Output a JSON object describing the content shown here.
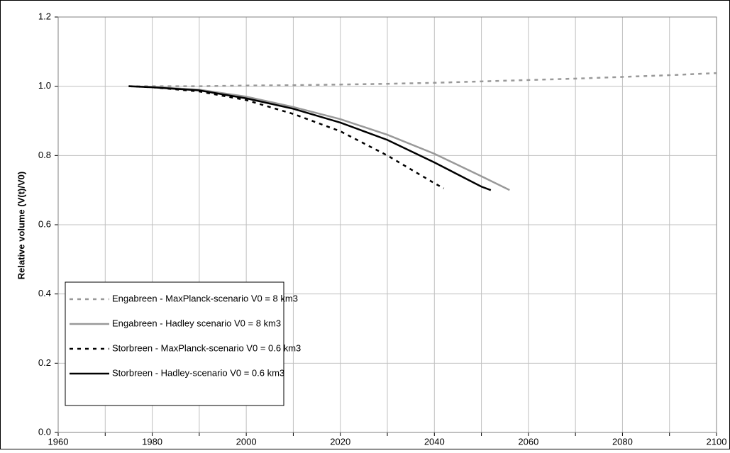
{
  "chart_data": {
    "type": "line",
    "y_label": "Relative volume (V(t)/V0)",
    "xlim": [
      1960,
      2100
    ],
    "xticks": [
      1960,
      1980,
      2000,
      2020,
      2040,
      2060,
      2080,
      2100
    ],
    "xminor_ticks": [
      1970,
      1990,
      2010,
      2030,
      2050,
      2070,
      2090
    ],
    "ylim": [
      0,
      1.2
    ],
    "yticks": [
      {
        "value": 0,
        "label": "0.0"
      },
      0.2,
      0.4,
      0.6,
      0.8,
      {
        "value": 1,
        "label": "1.0"
      },
      1.2
    ],
    "grid": true,
    "legend": "lower left",
    "series": [
      {
        "name": "Engabreen - MaxPlanck-scenario V0 = 8 km3",
        "color": "#999999",
        "dash": true,
        "x": [
          1975,
          1980,
          1990,
          2000,
          2010,
          2020,
          2030,
          2040,
          2050,
          2060,
          2070,
          2080,
          2090,
          2100
        ],
        "values": [
          1.0,
          1.0,
          1.0,
          1.002,
          1.003,
          1.005,
          1.007,
          1.01,
          1.014,
          1.018,
          1.022,
          1.027,
          1.032,
          1.038
        ]
      },
      {
        "name": "Engabreen - Hadley scenario V0 = 8 km3",
        "color": "#999999",
        "dash": false,
        "x": [
          1975,
          1980,
          1990,
          2000,
          2010,
          2020,
          2030,
          2040,
          2050,
          2056
        ],
        "values": [
          1.0,
          0.998,
          0.99,
          0.97,
          0.94,
          0.905,
          0.86,
          0.805,
          0.74,
          0.7
        ]
      },
      {
        "name": "Storbreen - MaxPlanck-scenario V0 = 0.6 km3",
        "color": "#000000",
        "dash": true,
        "x": [
          1975,
          1980,
          1990,
          2000,
          2010,
          2020,
          2030,
          2040,
          2042
        ],
        "values": [
          1.0,
          0.997,
          0.985,
          0.96,
          0.92,
          0.87,
          0.8,
          0.72,
          0.705
        ]
      },
      {
        "name": "Storbreen - Hadley-scenario V0 = 0.6 km3",
        "color": "#000000",
        "dash": false,
        "x": [
          1975,
          1980,
          1990,
          2000,
          2010,
          2020,
          2030,
          2040,
          2050,
          2052
        ],
        "values": [
          1.0,
          0.997,
          0.988,
          0.965,
          0.935,
          0.895,
          0.845,
          0.78,
          0.71,
          0.7
        ]
      }
    ]
  }
}
